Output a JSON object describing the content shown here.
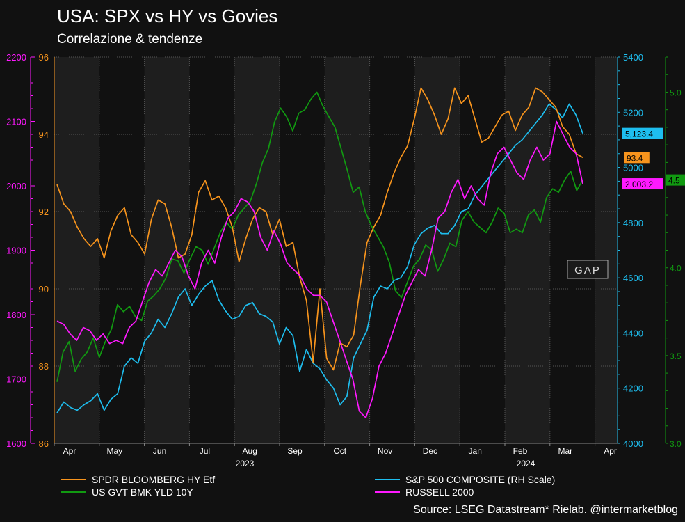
{
  "title": "USA: SPX vs HY vs Govies",
  "subtitle": "Correlazione & tendenze",
  "source": "Source: LSEG Datastream* Rielab. @intermarketblog",
  "annotation": "GAP",
  "colors": {
    "hy": "#f7941d",
    "spx": "#1ebeef",
    "yld": "#119a11",
    "rut": "#ff19ff",
    "grid": "#555555",
    "band": "#1e1e1e"
  },
  "chart_data": {
    "type": "line",
    "x_ticks": [
      "Apr",
      "May",
      "Jun",
      "Jul",
      "Aug",
      "Sep",
      "Oct",
      "Nov",
      "Dec",
      "Jan",
      "Feb",
      "Mar",
      "Apr"
    ],
    "x_year_labels": [
      "2023",
      "2024"
    ],
    "axes": {
      "rut_left": {
        "ticks": [
          "2200",
          "2100",
          "2000",
          "1900",
          "1800",
          "1700",
          "1600"
        ],
        "ylim": [
          1600,
          2200
        ],
        "color": "#ff19ff"
      },
      "hy_left": {
        "ticks": [
          "96",
          "94",
          "92",
          "90",
          "88",
          "86"
        ],
        "ylim": [
          86,
          96
        ],
        "color": "#f7941d"
      },
      "spx_right": {
        "ticks": [
          "5400",
          "5200",
          "5000",
          "4800",
          "4600",
          "4400",
          "4200",
          "4000"
        ],
        "ylim": [
          4000,
          5400
        ],
        "color": "#1ebeef"
      },
      "yld_right": {
        "ticks": [
          "5.0",
          "4.5",
          "4.0",
          "3.5",
          "3.0"
        ],
        "ylim": [
          3.0,
          5.2
        ],
        "color": "#119a11"
      }
    },
    "last_values": {
      "spx": "5,123.4",
      "hy": "93.4",
      "rut": "2,003.2",
      "yld": "4.5"
    },
    "series": [
      {
        "name": "SPDR BLOOMBERG HY Etf",
        "key": "hy",
        "axis": "hy_left",
        "values": [
          92.7,
          92.2,
          92.0,
          91.6,
          91.3,
          91.1,
          91.3,
          90.8,
          91.5,
          91.9,
          92.1,
          91.4,
          91.2,
          90.9,
          91.8,
          92.3,
          92.2,
          91.6,
          90.8,
          90.9,
          91.4,
          92.5,
          92.8,
          92.3,
          92.4,
          92.1,
          91.6,
          90.7,
          91.3,
          91.8,
          92.1,
          92.0,
          91.4,
          91.8,
          91.1,
          91.2,
          90.3,
          89.7,
          88.1,
          90.0,
          88.2,
          87.9,
          88.6,
          88.5,
          88.8,
          90.1,
          91.2,
          91.6,
          91.9,
          92.5,
          93.0,
          93.4,
          93.7,
          94.4,
          95.2,
          94.9,
          94.5,
          94.0,
          94.4,
          95.2,
          94.8,
          95.0,
          94.4,
          93.8,
          93.9,
          94.2,
          94.5,
          94.6,
          94.1,
          94.5,
          94.7,
          95.2,
          95.1,
          94.9,
          94.7,
          94.2,
          94.0,
          93.5,
          93.4
        ],
        "color": "#f7941d"
      },
      {
        "name": "S&P 500 COMPOSITE (RH Scale)",
        "key": "spx",
        "axis": "spx_right",
        "values": [
          4110,
          4150,
          4130,
          4120,
          4140,
          4155,
          4180,
          4120,
          4160,
          4180,
          4280,
          4310,
          4290,
          4370,
          4400,
          4450,
          4420,
          4470,
          4530,
          4560,
          4500,
          4540,
          4570,
          4590,
          4520,
          4480,
          4450,
          4460,
          4500,
          4510,
          4470,
          4460,
          4440,
          4360,
          4420,
          4390,
          4260,
          4340,
          4290,
          4270,
          4230,
          4200,
          4140,
          4170,
          4310,
          4360,
          4410,
          4530,
          4570,
          4560,
          4590,
          4600,
          4640,
          4720,
          4760,
          4780,
          4790,
          4760,
          4760,
          4790,
          4840,
          4850,
          4900,
          4930,
          4960,
          4990,
          5020,
          5050,
          5080,
          5100,
          5130,
          5160,
          5190,
          5230,
          5210,
          5180,
          5230,
          5190,
          5123.4
        ],
        "color": "#1ebeef"
      },
      {
        "name": "US GVT BMK YLD 10Y",
        "key": "yld",
        "axis": "yld_right",
        "values": [
          3.35,
          3.52,
          3.58,
          3.41,
          3.48,
          3.52,
          3.6,
          3.49,
          3.58,
          3.65,
          3.79,
          3.75,
          3.78,
          3.72,
          3.7,
          3.81,
          3.84,
          3.88,
          3.94,
          4.05,
          4.04,
          3.97,
          4.05,
          4.12,
          4.1,
          4.02,
          4.11,
          4.2,
          4.26,
          4.22,
          4.3,
          4.34,
          4.38,
          4.48,
          4.6,
          4.68,
          4.83,
          4.91,
          4.86,
          4.78,
          4.88,
          4.9,
          4.96,
          5.0,
          4.92,
          4.86,
          4.8,
          4.68,
          4.56,
          4.43,
          4.46,
          4.32,
          4.24,
          4.18,
          4.12,
          4.03,
          3.87,
          3.83,
          3.92,
          4.01,
          4.05,
          4.13,
          4.1,
          3.98,
          4.05,
          4.14,
          4.12,
          4.27,
          4.32,
          4.26,
          4.23,
          4.2,
          4.26,
          4.34,
          4.31,
          4.2,
          4.22,
          4.2,
          4.3,
          4.33,
          4.26,
          4.4,
          4.45,
          4.43,
          4.5,
          4.55,
          4.44,
          4.5
        ],
        "color": "#119a11"
      },
      {
        "name": "RUSSELL 2000",
        "key": "rut",
        "axis": "rut_left",
        "values": [
          1790,
          1785,
          1770,
          1760,
          1780,
          1775,
          1760,
          1770,
          1755,
          1760,
          1755,
          1780,
          1790,
          1820,
          1850,
          1870,
          1860,
          1880,
          1900,
          1890,
          1860,
          1840,
          1880,
          1900,
          1880,
          1920,
          1950,
          1960,
          1980,
          1975,
          1960,
          1920,
          1900,
          1930,
          1910,
          1880,
          1870,
          1860,
          1840,
          1830,
          1830,
          1820,
          1790,
          1760,
          1730,
          1700,
          1650,
          1640,
          1670,
          1720,
          1740,
          1770,
          1800,
          1830,
          1850,
          1870,
          1860,
          1900,
          1950,
          1960,
          1990,
          2010,
          1980,
          2000,
          1980,
          1970,
          2020,
          2050,
          2060,
          2040,
          2020,
          2010,
          2040,
          2060,
          2040,
          2050,
          2100,
          2080,
          2060,
          2050,
          2003.2
        ],
        "color": "#ff19ff"
      }
    ]
  }
}
